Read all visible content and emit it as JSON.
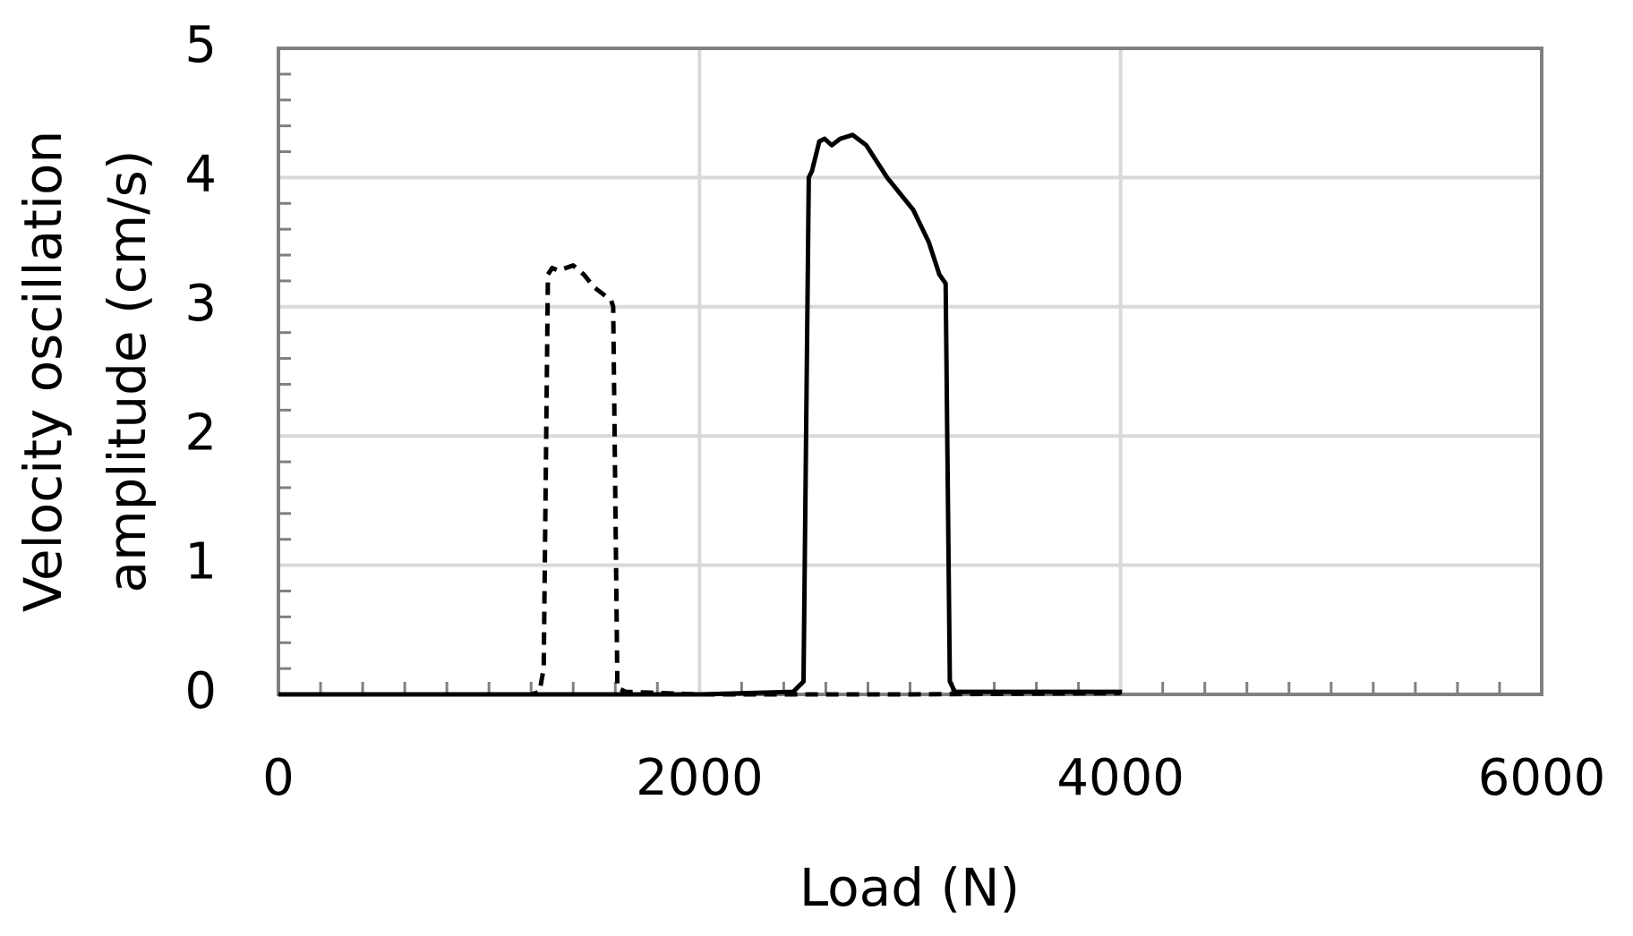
{
  "chart_data": {
    "type": "line",
    "xlabel": "Load (N)",
    "ylabel": [
      "Velocity oscillation",
      "amplitude (cm/s)"
    ],
    "xlim": [
      0,
      6000
    ],
    "xticks": [
      0,
      2000,
      4000,
      6000
    ],
    "ylim": [
      0,
      5
    ],
    "yticks": [
      0,
      1,
      2,
      3,
      4,
      5
    ],
    "grid": true,
    "series": [
      {
        "color": "#000000",
        "line_style": "dashed",
        "x": [
          0,
          1200,
          1240,
          1260,
          1280,
          1300,
          1330,
          1400,
          1450,
          1500,
          1580,
          1590,
          1610,
          1650,
          2000,
          2500,
          3000,
          4000
        ],
        "values": [
          0,
          0,
          0.02,
          0.2,
          3.25,
          3.3,
          3.28,
          3.32,
          3.25,
          3.15,
          3.05,
          3.0,
          0.05,
          0.02,
          0,
          0,
          0,
          0.01
        ]
      },
      {
        "color": "#000000",
        "line_style": "solid",
        "x": [
          0,
          1000,
          2000,
          2445,
          2494,
          2519,
          2534,
          2569,
          2594,
          2628,
          2668,
          2727,
          2792,
          2891,
          3015,
          3089,
          3139,
          3169,
          3189,
          3213,
          4007
        ],
        "values": [
          0,
          0,
          0,
          0.02,
          0.1,
          4.0,
          4.05,
          4.28,
          4.3,
          4.25,
          4.3,
          4.33,
          4.25,
          4.0,
          3.75,
          3.5,
          3.25,
          3.18,
          0.1,
          0.02,
          0.02
        ]
      }
    ]
  }
}
